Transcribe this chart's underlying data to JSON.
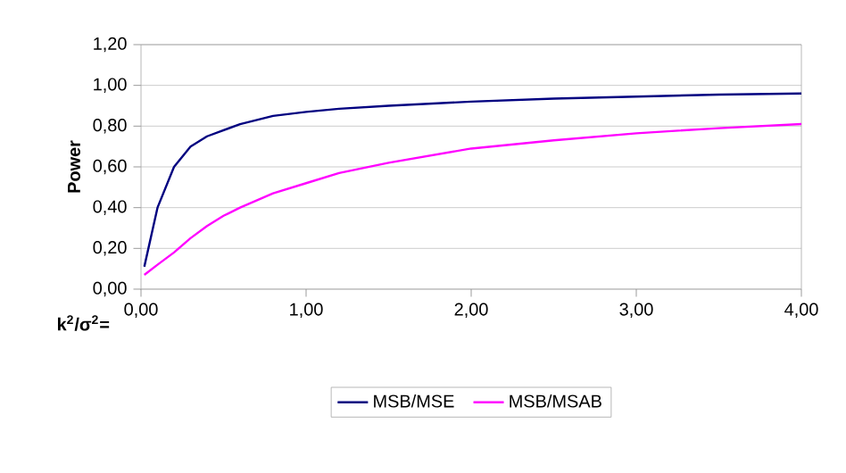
{
  "chart_data": {
    "type": "line",
    "xlabel": "k$^{2}$/σ$^{2}$=",
    "ylabel": "Power",
    "xlim": [
      0,
      4
    ],
    "xticks": [
      {
        "value": 0,
        "label": "0,00"
      },
      {
        "value": 1,
        "label": "1,00"
      },
      {
        "value": 2,
        "label": "2,00"
      },
      {
        "value": 3,
        "label": "3,00"
      },
      {
        "value": 4,
        "label": "4,00"
      }
    ],
    "ylim": [
      0,
      1.2
    ],
    "yticks": [
      {
        "value": 0,
        "label": "0,00"
      },
      {
        "value": 0.2,
        "label": "0,20"
      },
      {
        "value": 0.4,
        "label": "0,40"
      },
      {
        "value": 0.6,
        "label": "0,60"
      },
      {
        "value": 0.8,
        "label": "0,80"
      },
      {
        "value": 1.0,
        "label": "1,00"
      },
      {
        "value": 1.2,
        "label": "1,20"
      }
    ],
    "grid": "y",
    "legend": "bottom",
    "marker": "none",
    "line_style": "solid",
    "series": [
      {
        "name": "MSB/MSE",
        "color": "#000080",
        "x": [
          0.02,
          0.1,
          0.2,
          0.3,
          0.4,
          0.5,
          0.6,
          0.8,
          1.0,
          1.2,
          1.5,
          2,
          2.5,
          3,
          3.5,
          4
        ],
        "values": [
          0.11,
          0.4,
          0.6,
          0.7,
          0.75,
          0.78,
          0.81,
          0.85,
          0.87,
          0.885,
          0.9,
          0.92,
          0.935,
          0.945,
          0.955,
          0.96
        ]
      },
      {
        "name": "MSB/MSAB",
        "color": "#ff00ff",
        "x": [
          0.02,
          0.1,
          0.2,
          0.3,
          0.4,
          0.5,
          0.6,
          0.8,
          1.0,
          1.2,
          1.5,
          2,
          2.5,
          3,
          3.5,
          4
        ],
        "values": [
          0.07,
          0.12,
          0.18,
          0.25,
          0.31,
          0.36,
          0.4,
          0.47,
          0.52,
          0.57,
          0.62,
          0.69,
          0.73,
          0.765,
          0.79,
          0.81
        ]
      }
    ]
  }
}
